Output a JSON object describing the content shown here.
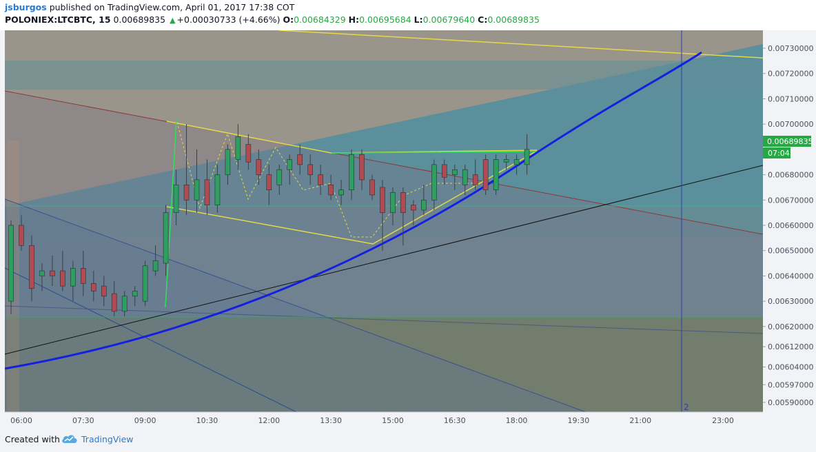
{
  "header": {
    "author": "jsburgos",
    "published_text": "published on TradingView.com, April 01, 2017 17:38 COT",
    "symbol": "POLONIEX:LTCBTC, 15",
    "last": "0.00689835",
    "change": "+0.00030733 (+4.66%)",
    "open_label": "O:",
    "open": "0.00684329",
    "high_label": "H:",
    "high": "0.00695684",
    "low_label": "L:",
    "low": "0.00679640",
    "close_label": "C:",
    "close": "0.00689835"
  },
  "footer": {
    "created_with": "Created with",
    "brand": "TradingView"
  },
  "colors": {
    "up": "#2e9e61",
    "down": "#b04b52",
    "accent": "#2a7bd0",
    "price_badge": "#27a844"
  },
  "chart_data": {
    "type": "candlestick",
    "x_tick_labels": [
      "06:00",
      "07:30",
      "09:00",
      "10:30",
      "12:00",
      "13:30",
      "15:00",
      "16:30",
      "18:00",
      "19:30",
      "21:00",
      "23:00"
    ],
    "y_tick_labels": [
      "0.00730000",
      "0.00720000",
      "0.00710000",
      "0.00700000",
      "0.00680000",
      "0.00670000",
      "0.00660000",
      "0.00650000",
      "0.00640000",
      "0.00630000",
      "0.00620000",
      "0.00612000",
      "0.00604000",
      "0.00597000",
      "0.00590000"
    ],
    "last_price": "0.00689835",
    "countdown": "07:04",
    "marker": "2",
    "ylim": [
      0.00585,
      0.00735
    ],
    "candles": [
      {
        "t": "05:45",
        "o": 0.0063,
        "h": 0.00662,
        "l": 0.00625,
        "c": 0.0066
      },
      {
        "t": "06:00",
        "o": 0.0066,
        "h": 0.00664,
        "l": 0.0065,
        "c": 0.00652
      },
      {
        "t": "06:15",
        "o": 0.00652,
        "h": 0.00656,
        "l": 0.0063,
        "c": 0.00635
      },
      {
        "t": "06:30",
        "o": 0.0064,
        "h": 0.00645,
        "l": 0.00634,
        "c": 0.00642
      },
      {
        "t": "06:45",
        "o": 0.00642,
        "h": 0.00648,
        "l": 0.00636,
        "c": 0.0064
      },
      {
        "t": "07:00",
        "o": 0.00642,
        "h": 0.0065,
        "l": 0.00634,
        "c": 0.00636
      },
      {
        "t": "07:15",
        "o": 0.00636,
        "h": 0.00646,
        "l": 0.0063,
        "c": 0.00643
      },
      {
        "t": "07:30",
        "o": 0.00643,
        "h": 0.0065,
        "l": 0.00632,
        "c": 0.00637
      },
      {
        "t": "07:45",
        "o": 0.00637,
        "h": 0.00642,
        "l": 0.0063,
        "c": 0.00634
      },
      {
        "t": "08:00",
        "o": 0.00636,
        "h": 0.0064,
        "l": 0.00628,
        "c": 0.00632
      },
      {
        "t": "08:15",
        "o": 0.00633,
        "h": 0.00638,
        "l": 0.00624,
        "c": 0.00626
      },
      {
        "t": "08:30",
        "o": 0.00626,
        "h": 0.00634,
        "l": 0.00624,
        "c": 0.00632
      },
      {
        "t": "08:45",
        "o": 0.00632,
        "h": 0.00636,
        "l": 0.00628,
        "c": 0.00634
      },
      {
        "t": "09:00",
        "o": 0.0063,
        "h": 0.00646,
        "l": 0.00628,
        "c": 0.00644
      },
      {
        "t": "09:15",
        "o": 0.00642,
        "h": 0.00652,
        "l": 0.0064,
        "c": 0.00646
      },
      {
        "t": "09:30",
        "o": 0.00645,
        "h": 0.00668,
        "l": 0.0064,
        "c": 0.00665
      },
      {
        "t": "09:45",
        "o": 0.00665,
        "h": 0.00682,
        "l": 0.0066,
        "c": 0.00676
      },
      {
        "t": "10:00",
        "o": 0.00676,
        "h": 0.007,
        "l": 0.00664,
        "c": 0.0067
      },
      {
        "t": "10:15",
        "o": 0.0067,
        "h": 0.0069,
        "l": 0.00665,
        "c": 0.00678
      },
      {
        "t": "10:30",
        "o": 0.00678,
        "h": 0.00686,
        "l": 0.00664,
        "c": 0.00668
      },
      {
        "t": "10:45",
        "o": 0.00668,
        "h": 0.00684,
        "l": 0.00665,
        "c": 0.0068
      },
      {
        "t": "11:00",
        "o": 0.0068,
        "h": 0.00692,
        "l": 0.00676,
        "c": 0.0069
      },
      {
        "t": "11:15",
        "o": 0.00686,
        "h": 0.007,
        "l": 0.00682,
        "c": 0.00695
      },
      {
        "t": "11:30",
        "o": 0.00692,
        "h": 0.00696,
        "l": 0.00682,
        "c": 0.00685
      },
      {
        "t": "11:45",
        "o": 0.00686,
        "h": 0.0069,
        "l": 0.00676,
        "c": 0.0068
      },
      {
        "t": "12:00",
        "o": 0.0068,
        "h": 0.00684,
        "l": 0.00668,
        "c": 0.00674
      },
      {
        "t": "12:15",
        "o": 0.00676,
        "h": 0.00684,
        "l": 0.00672,
        "c": 0.00682
      },
      {
        "t": "12:30",
        "o": 0.00682,
        "h": 0.00688,
        "l": 0.00676,
        "c": 0.00686
      },
      {
        "t": "12:45",
        "o": 0.00688,
        "h": 0.00692,
        "l": 0.0068,
        "c": 0.00684
      },
      {
        "t": "13:00",
        "o": 0.00684,
        "h": 0.00688,
        "l": 0.00676,
        "c": 0.0068
      },
      {
        "t": "13:15",
        "o": 0.0068,
        "h": 0.00684,
        "l": 0.00672,
        "c": 0.00676
      },
      {
        "t": "13:30",
        "o": 0.00676,
        "h": 0.0068,
        "l": 0.0067,
        "c": 0.00672
      },
      {
        "t": "13:45",
        "o": 0.00672,
        "h": 0.00678,
        "l": 0.00668,
        "c": 0.00674
      },
      {
        "t": "14:00",
        "o": 0.00674,
        "h": 0.0069,
        "l": 0.0067,
        "c": 0.00688
      },
      {
        "t": "14:15",
        "o": 0.00688,
        "h": 0.0069,
        "l": 0.00674,
        "c": 0.00678
      },
      {
        "t": "14:30",
        "o": 0.00678,
        "h": 0.0068,
        "l": 0.0067,
        "c": 0.00672
      },
      {
        "t": "14:45",
        "o": 0.00675,
        "h": 0.00678,
        "l": 0.0065,
        "c": 0.00665
      },
      {
        "t": "15:00",
        "o": 0.00665,
        "h": 0.00675,
        "l": 0.0066,
        "c": 0.00673
      },
      {
        "t": "15:15",
        "o": 0.00673,
        "h": 0.00675,
        "l": 0.00652,
        "c": 0.00665
      },
      {
        "t": "15:30",
        "o": 0.00668,
        "h": 0.0067,
        "l": 0.0066,
        "c": 0.00666
      },
      {
        "t": "15:45",
        "o": 0.00666,
        "h": 0.00676,
        "l": 0.00664,
        "c": 0.0067
      },
      {
        "t": "16:00",
        "o": 0.0067,
        "h": 0.00686,
        "l": 0.00666,
        "c": 0.00684
      },
      {
        "t": "16:15",
        "o": 0.00684,
        "h": 0.00686,
        "l": 0.00676,
        "c": 0.00679
      },
      {
        "t": "16:30",
        "o": 0.0068,
        "h": 0.00684,
        "l": 0.00674,
        "c": 0.00682
      },
      {
        "t": "16:45",
        "o": 0.00676,
        "h": 0.00684,
        "l": 0.00672,
        "c": 0.00682
      },
      {
        "t": "17:00",
        "o": 0.0068,
        "h": 0.00686,
        "l": 0.00674,
        "c": 0.00676
      },
      {
        "t": "17:15",
        "o": 0.00686,
        "h": 0.00688,
        "l": 0.00672,
        "c": 0.00674
      },
      {
        "t": "17:30",
        "o": 0.00674,
        "h": 0.00688,
        "l": 0.00672,
        "c": 0.00686
      },
      {
        "t": "17:45",
        "o": 0.00685,
        "h": 0.00688,
        "l": 0.00682,
        "c": 0.00686
      },
      {
        "t": "18:00",
        "o": 0.00684,
        "h": 0.00688,
        "l": 0.0068,
        "c": 0.00686
      },
      {
        "t": "18:15",
        "o": 0.00684,
        "h": 0.00696,
        "l": 0.0068,
        "c": 0.0069
      }
    ]
  }
}
